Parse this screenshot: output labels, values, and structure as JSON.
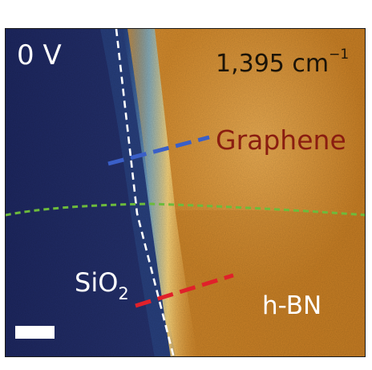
{
  "labels": {
    "voltage": "0 V",
    "wavenumber": "1,395 cm",
    "wavenumber_exponent": "−1",
    "graphene": "Graphene",
    "sio2_base": "SiO",
    "sio2_subscript": "2",
    "hbn": "h-BN"
  },
  "colors": {
    "sio2_region": "#1f2a63",
    "hbn_region": "#d88d2a",
    "hbn_highlight": "#eeb055",
    "edge_glow": "#f3c766",
    "graphene_boundary_line": "#6dbb3c",
    "substrate_edge_line": "#ffffff",
    "graphene_profile_line": "#3a5fc8",
    "hbn_profile_line": "#e0202a",
    "graphene_label": "#8a1d10"
  },
  "scale_bar": {
    "shown": true,
    "label": ""
  }
}
